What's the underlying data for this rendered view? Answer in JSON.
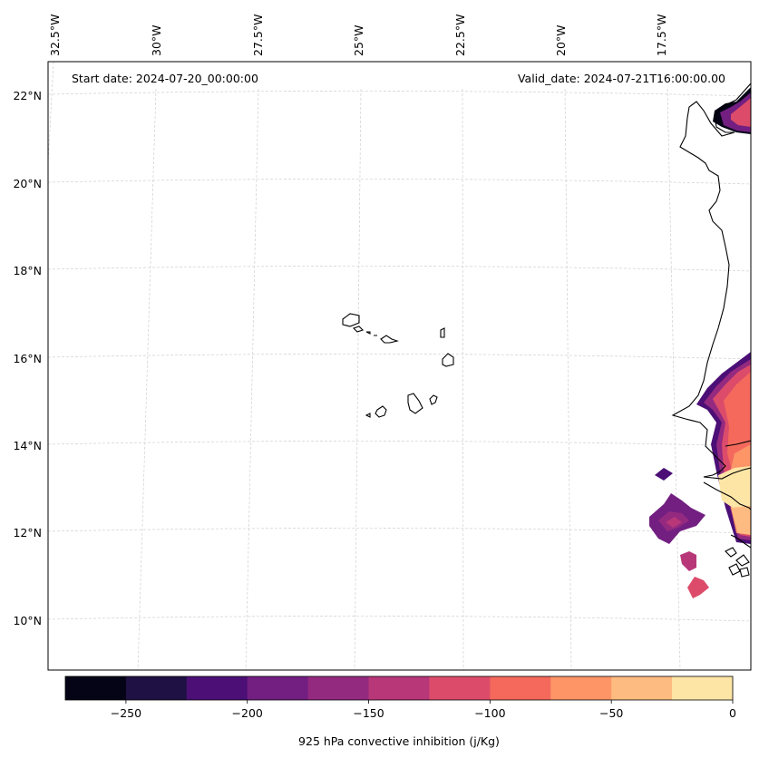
{
  "map": {
    "start_date": "Start date: 2024-07-20_00:00:00",
    "valid_date": "Valid_date: 2024-07-21T16:00:00.00",
    "lon_labels": [
      "32.5°W",
      "30°W",
      "27.5°W",
      "25°W",
      "22.5°W",
      "20°W",
      "17.5°W"
    ],
    "lat_labels": [
      "22°N",
      "20°N",
      "18°N",
      "16°N",
      "14°N",
      "12°N",
      "10°N"
    ],
    "gridlines": true,
    "coastline_color": "#000000",
    "land_fill": "none"
  },
  "colorbar": {
    "label": "925 hPa convective inhibition (j/Kg)",
    "tick_labels": [
      "−250",
      "−200",
      "−150",
      "−100",
      "−50",
      "0"
    ],
    "levels": [
      -275,
      -250,
      -225,
      -200,
      -175,
      -150,
      -125,
      -100,
      -75,
      -50,
      -25,
      0
    ],
    "colors": [
      "#050416",
      "#1f1144",
      "#4b0f76",
      "#721f81",
      "#942a80",
      "#b73779",
      "#dc4c6a",
      "#f4695c",
      "#fd9567",
      "#febb81",
      "#fde5a6"
    ],
    "orientation": "horizontal",
    "placement": "bottom"
  }
}
